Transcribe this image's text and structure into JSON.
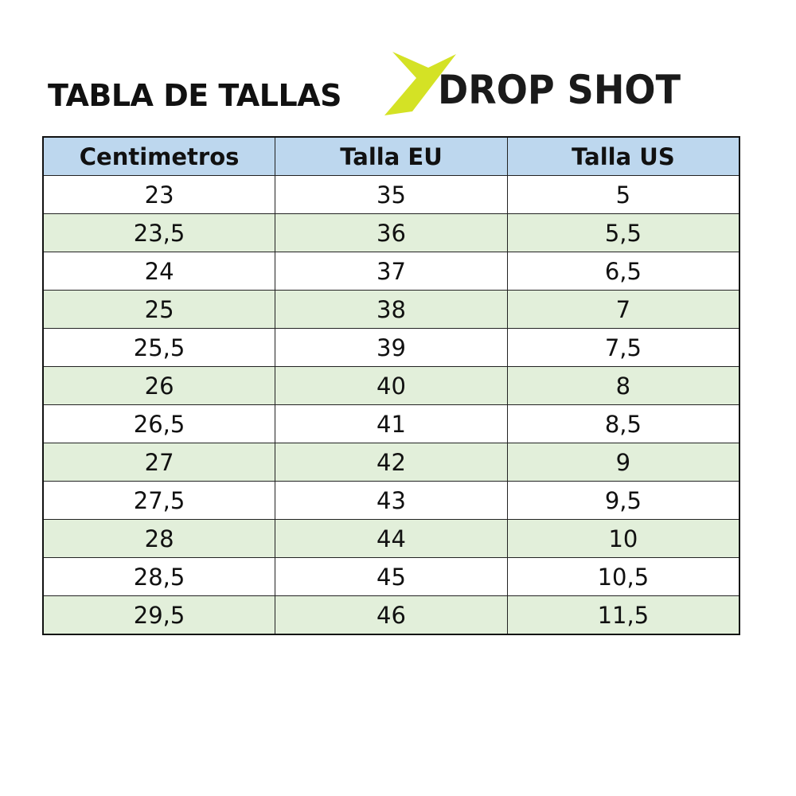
{
  "title": "TABLA DE TALLAS",
  "logo": {
    "text": "DROP SHOT",
    "accent_color": "#d4e225"
  },
  "colors": {
    "header_bg": "#bdd7ee",
    "alt_row_bg": "#e2efda"
  },
  "table": {
    "headers": [
      "Centimetros",
      "Talla EU",
      "Talla US"
    ],
    "rows": [
      [
        "23",
        "35",
        "5"
      ],
      [
        "23,5",
        "36",
        "5,5"
      ],
      [
        "24",
        "37",
        "6,5"
      ],
      [
        "25",
        "38",
        "7"
      ],
      [
        "25,5",
        "39",
        "7,5"
      ],
      [
        "26",
        "40",
        "8"
      ],
      [
        "26,5",
        "41",
        "8,5"
      ],
      [
        "27",
        "42",
        "9"
      ],
      [
        "27,5",
        "43",
        "9,5"
      ],
      [
        "28",
        "44",
        "10"
      ],
      [
        "28,5",
        "45",
        "10,5"
      ],
      [
        "29,5",
        "46",
        "11,5"
      ]
    ]
  }
}
